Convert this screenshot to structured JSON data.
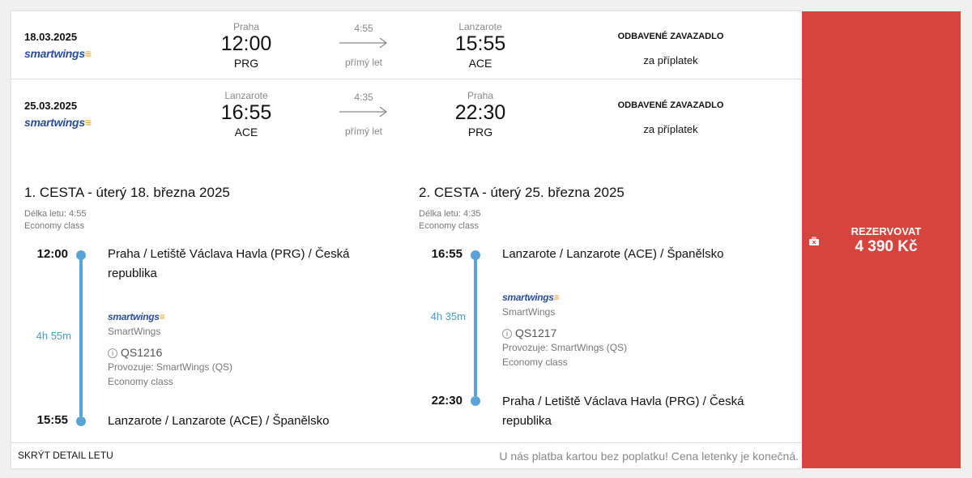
{
  "flights": [
    {
      "date": "18.03.2025",
      "airline": "smartwings",
      "from_city": "Praha",
      "dep_time": "12:00",
      "from_code": "PRG",
      "duration": "4:55",
      "direct": "přímý let",
      "to_city": "Lanzarote",
      "arr_time": "15:55",
      "to_code": "ACE",
      "baggage": "ODBAVENÉ ZAVAZADLO",
      "baggage_note": "za příplatek"
    },
    {
      "date": "25.03.2025",
      "airline": "smartwings",
      "from_city": "Lanzarote",
      "dep_time": "16:55",
      "from_code": "ACE",
      "duration": "4:35",
      "direct": "přímý let",
      "to_city": "Praha",
      "arr_time": "22:30",
      "to_code": "PRG",
      "baggage": "ODBAVENÉ ZAVAZADLO",
      "baggage_note": "za příplatek"
    }
  ],
  "details": [
    {
      "title": "1. CESTA - úterý 18. března 2025",
      "length": "Délka letu: 4:55",
      "class": "Economy class",
      "dep_time": "12:00",
      "dep_place": "Praha / Letiště Václava Havla (PRG) / Česká republika",
      "total": "4h 55m",
      "airline_logo": "smartwings",
      "airline": "SmartWings",
      "flight_no": "QS1216",
      "operated": "Provozuje: SmartWings (QS)",
      "seg_class": "Economy class",
      "arr_time": "15:55",
      "arr_place": "Lanzarote / Lanzarote (ACE) / Španělsko"
    },
    {
      "title": "2. CESTA - úterý 25. března 2025",
      "length": "Délka letu: 4:35",
      "class": "Economy class",
      "dep_time": "16:55",
      "dep_place": "Lanzarote / Lanzarote (ACE) / Španělsko",
      "total": "4h 35m",
      "airline_logo": "smartwings",
      "airline": "SmartWings",
      "flight_no": "QS1217",
      "operated": "Provozuje: SmartWings (QS)",
      "seg_class": "Economy class",
      "arr_time": "22:30",
      "arr_place": "Praha / Letiště Václava Havla (PRG) / Česká republika"
    }
  ],
  "footer": {
    "hide_label": "SKRÝT DETAIL LETU",
    "note": "U nás platba kartou bez poplatku! Cena letenky je konečná."
  },
  "booking": {
    "label": "REZERVOVAT",
    "price": "4 390 Kč",
    "icon": "baggage-crossed-icon",
    "color": "#d5453d"
  },
  "info_icon": "info-icon"
}
